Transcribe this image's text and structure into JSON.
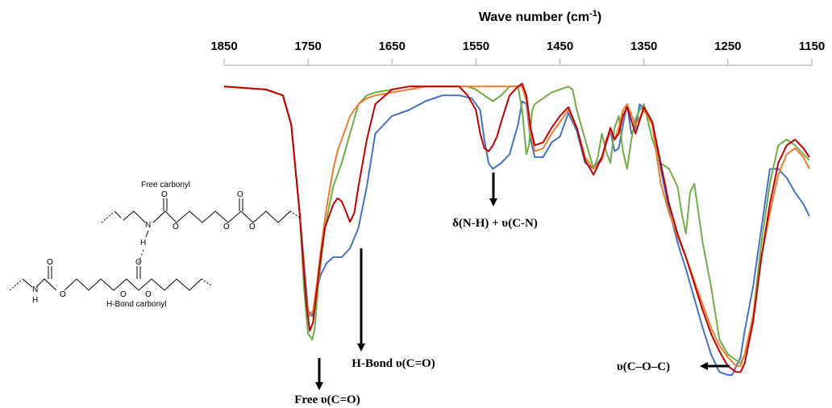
{
  "chart_data": {
    "type": "line",
    "xlabel": "Wave number",
    "xlabel_unit": "(cm-1)",
    "xlabel_unit_parts": [
      "(cm",
      "-1",
      ")"
    ],
    "x_reversed": true,
    "xlim": [
      1850,
      1150
    ],
    "ylim": [
      0,
      1
    ],
    "grid": false,
    "legend": "none",
    "ticks": [
      {
        "value": 1850,
        "label": "1850"
      },
      {
        "value": 1750,
        "label": "1750"
      },
      {
        "value": 1650,
        "label": "1650"
      },
      {
        "value": 1550,
        "label": "1550"
      },
      {
        "value": 1450,
        "label": "1450"
      },
      {
        "value": 1350,
        "label": "1350"
      },
      {
        "value": 1250,
        "label": "1250"
      },
      {
        "value": 1150,
        "label": "1150"
      }
    ],
    "series": [
      {
        "color": "#4472c4",
        "x": [
          1850,
          1800,
          1780,
          1770,
          1760,
          1750,
          1745,
          1740,
          1735,
          1728,
          1720,
          1710,
          1700,
          1690,
          1680,
          1670,
          1650,
          1630,
          1610,
          1590,
          1570,
          1555,
          1545,
          1540,
          1535,
          1530,
          1520,
          1510,
          1500,
          1495,
          1490,
          1485,
          1480,
          1470,
          1460,
          1450,
          1440,
          1430,
          1420,
          1410,
          1400,
          1390,
          1385,
          1380,
          1375,
          1370,
          1365,
          1360,
          1355,
          1350,
          1340,
          1330,
          1320,
          1310,
          1300,
          1290,
          1280,
          1270,
          1260,
          1250,
          1245,
          1240,
          1235,
          1230,
          1220,
          1210,
          1200,
          1190,
          1180,
          1170,
          1160,
          1153
        ],
        "y": [
          0.02,
          0.03,
          0.05,
          0.15,
          0.45,
          0.78,
          0.8,
          0.72,
          0.66,
          0.62,
          0.6,
          0.6,
          0.57,
          0.5,
          0.36,
          0.18,
          0.12,
          0.1,
          0.07,
          0.05,
          0.05,
          0.06,
          0.1,
          0.2,
          0.28,
          0.3,
          0.28,
          0.25,
          0.15,
          0.07,
          0.08,
          0.2,
          0.26,
          0.26,
          0.21,
          0.19,
          0.11,
          0.17,
          0.28,
          0.3,
          0.26,
          0.17,
          0.24,
          0.23,
          0.15,
          0.08,
          0.18,
          0.16,
          0.08,
          0.1,
          0.14,
          0.3,
          0.44,
          0.55,
          0.64,
          0.74,
          0.84,
          0.93,
          0.99,
          1.0,
          1.0,
          0.97,
          0.94,
          0.85,
          0.7,
          0.5,
          0.3,
          0.3,
          0.33,
          0.38,
          0.42,
          0.46
        ]
      },
      {
        "color": "#70ad47",
        "x": [
          1850,
          1800,
          1780,
          1770,
          1760,
          1755,
          1750,
          1745,
          1742,
          1738,
          1730,
          1720,
          1710,
          1700,
          1690,
          1680,
          1670,
          1650,
          1630,
          1610,
          1590,
          1570,
          1560,
          1550,
          1540,
          1530,
          1520,
          1510,
          1500,
          1495,
          1490,
          1487,
          1483,
          1480,
          1470,
          1460,
          1450,
          1440,
          1435,
          1430,
          1420,
          1415,
          1410,
          1405,
          1400,
          1395,
          1390,
          1385,
          1380,
          1375,
          1370,
          1365,
          1360,
          1355,
          1350,
          1340,
          1330,
          1320,
          1310,
          1305,
          1300,
          1295,
          1290,
          1280,
          1270,
          1260,
          1250,
          1240,
          1235,
          1230,
          1220,
          1210,
          1200,
          1190,
          1180,
          1170,
          1160,
          1153
        ],
        "y": [
          0.02,
          0.03,
          0.05,
          0.15,
          0.45,
          0.7,
          0.86,
          0.88,
          0.84,
          0.7,
          0.5,
          0.36,
          0.28,
          0.18,
          0.08,
          0.05,
          0.04,
          0.03,
          0.02,
          0.02,
          0.02,
          0.02,
          0.02,
          0.03,
          0.05,
          0.07,
          0.05,
          0.02,
          0.02,
          0.1,
          0.25,
          0.22,
          0.1,
          0.08,
          0.06,
          0.04,
          0.03,
          0.02,
          0.03,
          0.1,
          0.2,
          0.25,
          0.3,
          0.26,
          0.18,
          0.24,
          0.28,
          0.16,
          0.12,
          0.24,
          0.3,
          0.2,
          0.13,
          0.1,
          0.08,
          0.2,
          0.28,
          0.3,
          0.36,
          0.45,
          0.52,
          0.38,
          0.35,
          0.55,
          0.7,
          0.88,
          0.93,
          0.95,
          0.96,
          0.93,
          0.8,
          0.55,
          0.35,
          0.22,
          0.2,
          0.22,
          0.25,
          0.27
        ]
      },
      {
        "color": "#ed7d31",
        "x": [
          1850,
          1800,
          1780,
          1770,
          1760,
          1752,
          1748,
          1744,
          1740,
          1735,
          1730,
          1725,
          1720,
          1715,
          1710,
          1700,
          1690,
          1680,
          1670,
          1650,
          1630,
          1610,
          1590,
          1570,
          1550,
          1530,
          1510,
          1495,
          1490,
          1485,
          1480,
          1470,
          1460,
          1450,
          1440,
          1430,
          1420,
          1410,
          1400,
          1395,
          1390,
          1385,
          1380,
          1375,
          1370,
          1360,
          1350,
          1340,
          1335,
          1330,
          1320,
          1310,
          1300,
          1290,
          1280,
          1270,
          1260,
          1250,
          1240,
          1235,
          1230,
          1220,
          1210,
          1200,
          1190,
          1180,
          1170,
          1160,
          1153
        ],
        "y": [
          0.02,
          0.03,
          0.05,
          0.15,
          0.45,
          0.75,
          0.8,
          0.78,
          0.7,
          0.58,
          0.47,
          0.38,
          0.3,
          0.24,
          0.2,
          0.12,
          0.08,
          0.06,
          0.05,
          0.04,
          0.03,
          0.02,
          0.02,
          0.02,
          0.02,
          0.02,
          0.02,
          0.02,
          0.07,
          0.18,
          0.24,
          0.23,
          0.18,
          0.14,
          0.1,
          0.16,
          0.26,
          0.3,
          0.27,
          0.2,
          0.17,
          0.2,
          0.16,
          0.1,
          0.08,
          0.15,
          0.1,
          0.15,
          0.25,
          0.35,
          0.45,
          0.53,
          0.6,
          0.68,
          0.76,
          0.84,
          0.9,
          0.94,
          0.97,
          0.97,
          0.93,
          0.8,
          0.6,
          0.45,
          0.32,
          0.25,
          0.23,
          0.26,
          0.3
        ]
      },
      {
        "color": "#c00000",
        "x": [
          1850,
          1800,
          1780,
          1770,
          1760,
          1752,
          1748,
          1744,
          1740,
          1735,
          1730,
          1720,
          1715,
          1710,
          1707,
          1700,
          1695,
          1690,
          1680,
          1670,
          1650,
          1630,
          1610,
          1590,
          1570,
          1560,
          1550,
          1545,
          1540,
          1535,
          1530,
          1525,
          1520,
          1510,
          1500,
          1495,
          1490,
          1485,
          1480,
          1470,
          1460,
          1450,
          1440,
          1430,
          1420,
          1410,
          1400,
          1390,
          1385,
          1380,
          1375,
          1370,
          1360,
          1350,
          1340,
          1330,
          1320,
          1310,
          1300,
          1290,
          1280,
          1270,
          1260,
          1250,
          1240,
          1235,
          1230,
          1220,
          1210,
          1200,
          1190,
          1180,
          1170,
          1160,
          1153
        ],
        "y": [
          0.02,
          0.03,
          0.05,
          0.15,
          0.45,
          0.76,
          0.85,
          0.82,
          0.72,
          0.6,
          0.5,
          0.42,
          0.4,
          0.41,
          0.43,
          0.48,
          0.45,
          0.36,
          0.2,
          0.08,
          0.03,
          0.02,
          0.02,
          0.02,
          0.02,
          0.05,
          0.1,
          0.18,
          0.23,
          0.24,
          0.22,
          0.19,
          0.14,
          0.05,
          0.02,
          0.01,
          0.05,
          0.16,
          0.22,
          0.21,
          0.16,
          0.12,
          0.09,
          0.16,
          0.27,
          0.32,
          0.26,
          0.16,
          0.2,
          0.18,
          0.12,
          0.09,
          0.18,
          0.09,
          0.14,
          0.28,
          0.42,
          0.52,
          0.6,
          0.69,
          0.78,
          0.86,
          0.92,
          0.97,
          0.99,
          0.99,
          0.96,
          0.82,
          0.6,
          0.42,
          0.28,
          0.22,
          0.2,
          0.23,
          0.26
        ]
      }
    ],
    "annotations": [
      {
        "id": "free",
        "text": "Free υ(C=O)",
        "wavenumber": 1740,
        "direction": "down"
      },
      {
        "id": "hbond",
        "text": "H-Bond υ(C=O)",
        "wavenumber": 1695,
        "direction": "down"
      },
      {
        "id": "nh",
        "text": "δ(N-H) + υ(C-N)",
        "wavenumber": 1530,
        "direction": "down"
      },
      {
        "id": "coc",
        "text": "υ(C–O–C)",
        "wavenumber": 1235,
        "direction": "left"
      }
    ]
  },
  "inset": {
    "free_label": "Free carbonyl",
    "hbond_label": "H-Bond carbonyl",
    "atoms": {
      "n": "N",
      "h": "H",
      "o": "O"
    }
  }
}
